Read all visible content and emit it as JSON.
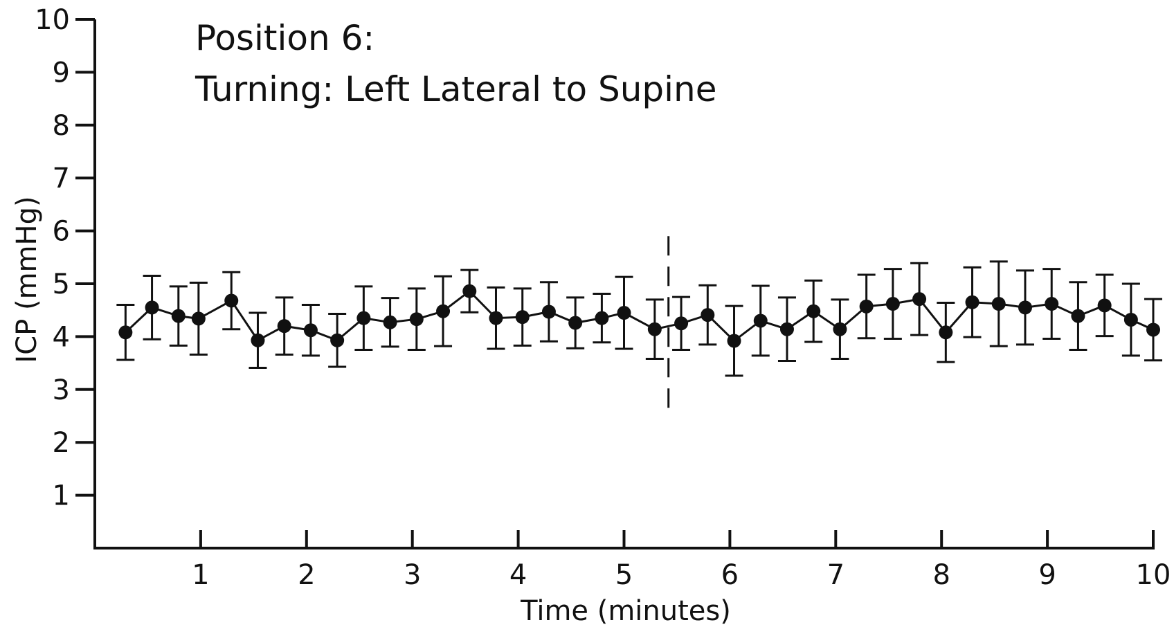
{
  "chart_data": {
    "type": "line",
    "title": "Position 6:",
    "subtitle": "Turning: Left Lateral to Supine",
    "xlabel": "Time (minutes)",
    "ylabel": "ICP (mmHg)",
    "xlim": [
      0,
      10
    ],
    "ylim": [
      0,
      10
    ],
    "xticks": [
      "1",
      "2",
      "3",
      "4",
      "5",
      "6",
      "7",
      "8",
      "9",
      "10"
    ],
    "yticks": [
      "1",
      "2",
      "3",
      "4",
      "5",
      "6",
      "7",
      "8",
      "9",
      "10"
    ],
    "grid": false,
    "legend": "none",
    "event_marker_x": 5.42,
    "series": [
      {
        "x": [
          0.29,
          0.54,
          0.79,
          0.98,
          1.29,
          1.54,
          1.79,
          2.04,
          2.29,
          2.54,
          2.79,
          3.04,
          3.29,
          3.54,
          3.79,
          4.04,
          4.29,
          4.54,
          4.79,
          5.0,
          5.29,
          5.54,
          5.79,
          6.04,
          6.29,
          6.54,
          6.79,
          7.04,
          7.29,
          7.54,
          7.79,
          8.04,
          8.29,
          8.54,
          8.79,
          9.04,
          9.29,
          9.54,
          9.79,
          10.0
        ],
        "y": [
          4.08,
          4.55,
          4.39,
          4.34,
          4.68,
          3.93,
          4.2,
          4.12,
          3.93,
          4.35,
          4.27,
          4.33,
          4.48,
          4.86,
          4.35,
          4.37,
          4.47,
          4.26,
          4.35,
          4.45,
          4.14,
          4.25,
          4.41,
          3.92,
          4.3,
          4.14,
          4.48,
          4.14,
          4.57,
          4.62,
          4.71,
          4.08,
          4.65,
          4.62,
          4.55,
          4.62,
          4.39,
          4.59,
          4.32,
          4.13
        ],
        "error": [
          0.52,
          0.6,
          0.56,
          0.68,
          0.54,
          0.52,
          0.54,
          0.48,
          0.5,
          0.6,
          0.46,
          0.58,
          0.66,
          0.4,
          0.58,
          0.54,
          0.56,
          0.48,
          0.46,
          0.68,
          0.56,
          0.5,
          0.56,
          0.66,
          0.66,
          0.6,
          0.58,
          0.56,
          0.6,
          0.66,
          0.68,
          0.56,
          0.66,
          0.8,
          0.7,
          0.66,
          0.64,
          0.58,
          0.68,
          0.58
        ]
      }
    ]
  }
}
